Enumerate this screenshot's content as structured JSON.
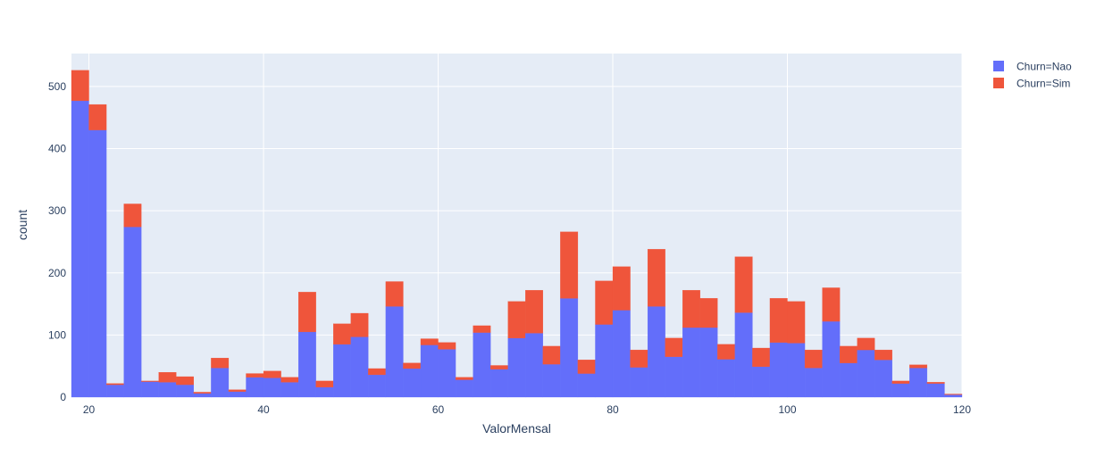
{
  "chart_data": {
    "type": "bar",
    "barmode": "stack",
    "xlabel": "ValorMensal",
    "ylabel": "count",
    "xlim": [
      18,
      120
    ],
    "ylim": [
      0,
      553
    ],
    "x_ticks": [
      20,
      40,
      60,
      80,
      100,
      120
    ],
    "y_ticks": [
      0,
      100,
      200,
      300,
      400,
      500
    ],
    "bin_width": 2,
    "grid": true,
    "background_color": "#e5ecf6",
    "legend_position": "top-right",
    "x": [
      19,
      21,
      23,
      25,
      27,
      29,
      31,
      33,
      35,
      37,
      39,
      41,
      43,
      45,
      47,
      49,
      51,
      53,
      55,
      57,
      59,
      61,
      63,
      65,
      67,
      69,
      71,
      73,
      75,
      77,
      79,
      81,
      83,
      85,
      87,
      89,
      91,
      93,
      95,
      97,
      99,
      101,
      103,
      105,
      107,
      109,
      111,
      113,
      115,
      117,
      119
    ],
    "series": [
      {
        "name": "Churn=Nao",
        "color": "#636efa",
        "values": [
          477,
          430,
          20,
          274,
          25,
          24,
          20,
          6,
          47,
          9,
          32,
          31,
          24,
          105,
          16,
          85,
          97,
          36,
          146,
          46,
          84,
          77,
          28,
          104,
          45,
          95,
          103,
          53,
          159,
          38,
          117,
          140,
          48,
          146,
          65,
          112,
          112,
          61,
          136,
          49,
          88,
          87,
          47,
          122,
          55,
          76,
          60,
          22,
          47,
          22,
          4
        ]
      },
      {
        "name": "Churn=Sim",
        "color": "#ef553b",
        "values": [
          49,
          41,
          2,
          37,
          1,
          16,
          13,
          2,
          16,
          3,
          6,
          11,
          8,
          64,
          10,
          33,
          38,
          10,
          40,
          9,
          10,
          11,
          4,
          11,
          6,
          59,
          69,
          29,
          107,
          22,
          70,
          70,
          28,
          92,
          30,
          60,
          47,
          24,
          90,
          30,
          71,
          67,
          29,
          54,
          27,
          19,
          16,
          4,
          5,
          2,
          1
        ]
      }
    ]
  }
}
